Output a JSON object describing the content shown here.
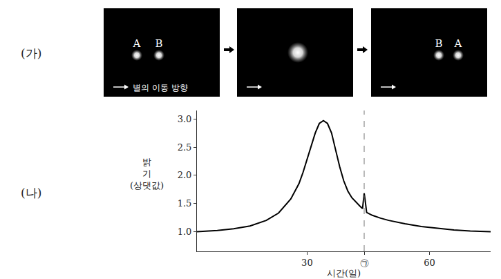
{
  "section_labels": [
    "(가)",
    "(나)"
  ],
  "diagram": {
    "direction_text": "별의 이동 방향",
    "panels": [
      {
        "stars": [
          "A",
          "B"
        ]
      },
      {
        "merged": true
      },
      {
        "stars": [
          "B",
          "A"
        ]
      }
    ]
  },
  "chart_data": {
    "type": "line",
    "x_label": "시간(일)",
    "y_label": "밝기(상댓값)",
    "series": [
      {
        "name": "밝기",
        "color": "#000000",
        "x": [
          3,
          8,
          12,
          16,
          20,
          23,
          26,
          28,
          29,
          30,
          31,
          32,
          33,
          34,
          35,
          36,
          37,
          38,
          39,
          40,
          41,
          42,
          43,
          43.6,
          43.8,
          44,
          44.2,
          44.4,
          44.6,
          46,
          48,
          50,
          54,
          58,
          62,
          66,
          70,
          75
        ],
        "values": [
          1.0,
          1.02,
          1.05,
          1.1,
          1.2,
          1.33,
          1.58,
          1.85,
          2.05,
          2.28,
          2.52,
          2.75,
          2.92,
          2.97,
          2.92,
          2.75,
          2.45,
          2.15,
          1.9,
          1.72,
          1.6,
          1.52,
          1.45,
          1.41,
          1.55,
          1.68,
          1.58,
          1.42,
          1.34,
          1.29,
          1.24,
          1.2,
          1.14,
          1.09,
          1.06,
          1.03,
          1.01,
          1.0
        ]
      }
    ],
    "reference_line": {
      "x": 44
    },
    "xlim": [
      3,
      75
    ],
    "xticks": [
      30,
      {
        "value": 44,
        "label": "㉠"
      },
      60
    ],
    "ylim": [
      0.65,
      3.15
    ],
    "yticks": [
      {
        "value": 1,
        "label": "1.0"
      },
      {
        "value": 1.5,
        "label": "1.5"
      },
      {
        "value": 2,
        "label": "2.0"
      },
      {
        "value": 2.5,
        "label": "2.5"
      },
      {
        "value": 3,
        "label": "3.0"
      }
    ],
    "grid": false
  }
}
